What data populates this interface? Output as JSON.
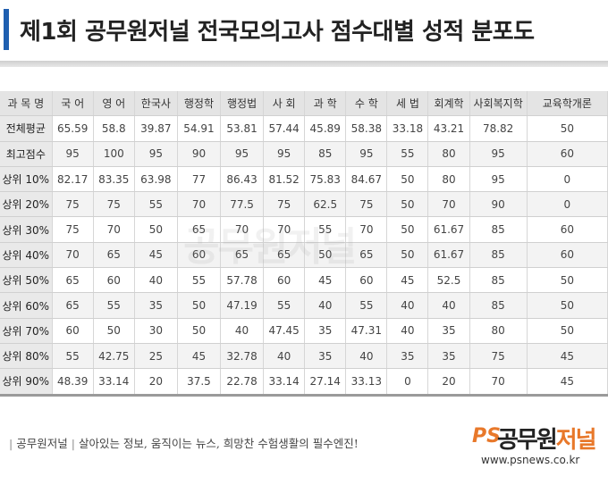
{
  "title": "제1회 공무원저널 전국모의고사 점수대별 성적 분포도",
  "table": {
    "header": [
      "과 목 명",
      "국 어",
      "영 어",
      "한국사",
      "행정학",
      "행정법",
      "사 회",
      "과 학",
      "수 학",
      "세 법",
      "회계학",
      "사회복지학",
      "교육학개론"
    ],
    "rows": [
      [
        "전체평균",
        "65.59",
        "58.8",
        "39.87",
        "54.91",
        "53.81",
        "57.44",
        "45.89",
        "58.38",
        "33.18",
        "43.21",
        "78.82",
        "50"
      ],
      [
        "최고점수",
        "95",
        "100",
        "95",
        "90",
        "95",
        "95",
        "85",
        "95",
        "55",
        "80",
        "95",
        "60"
      ],
      [
        "상위 10%",
        "82.17",
        "83.35",
        "63.98",
        "77",
        "86.43",
        "81.52",
        "75.83",
        "84.67",
        "50",
        "80",
        "95",
        "0"
      ],
      [
        "상위 20%",
        "75",
        "75",
        "55",
        "70",
        "77.5",
        "75",
        "62.5",
        "75",
        "50",
        "70",
        "90",
        "0"
      ],
      [
        "상위 30%",
        "75",
        "70",
        "50",
        "65",
        "70",
        "70",
        "55",
        "70",
        "50",
        "61.67",
        "85",
        "60"
      ],
      [
        "상위 40%",
        "70",
        "65",
        "45",
        "60",
        "65",
        "65",
        "50",
        "65",
        "50",
        "61.67",
        "85",
        "60"
      ],
      [
        "상위 50%",
        "65",
        "60",
        "40",
        "55",
        "57.78",
        "60",
        "45",
        "60",
        "45",
        "52.5",
        "85",
        "50"
      ],
      [
        "상위 60%",
        "65",
        "55",
        "35",
        "50",
        "47.19",
        "55",
        "40",
        "55",
        "40",
        "40",
        "85",
        "50"
      ],
      [
        "상위 70%",
        "60",
        "50",
        "30",
        "50",
        "40",
        "47.45",
        "35",
        "47.31",
        "40",
        "35",
        "80",
        "50"
      ],
      [
        "상위 80%",
        "55",
        "42.75",
        "25",
        "45",
        "32.78",
        "40",
        "35",
        "40",
        "35",
        "35",
        "75",
        "45"
      ],
      [
        "상위 90%",
        "48.39",
        "33.14",
        "20",
        "37.5",
        "22.78",
        "33.14",
        "27.14",
        "33.13",
        "0",
        "20",
        "70",
        "45"
      ]
    ]
  },
  "watermark": "공무원저널",
  "footer": {
    "brand": "공무원저널",
    "slogan": "살아있는 정보, 움직이는 뉴스, 희망찬 수험생활의 필수엔진!",
    "logo_ps": "PS",
    "logo_main": "공무원",
    "logo_sub": "저널",
    "url": "www.psnews.co.kr"
  },
  "colors": {
    "accent": "#1f5fb0",
    "logo_orange": "#e8782a",
    "header_bg": "#e4e4e4"
  }
}
